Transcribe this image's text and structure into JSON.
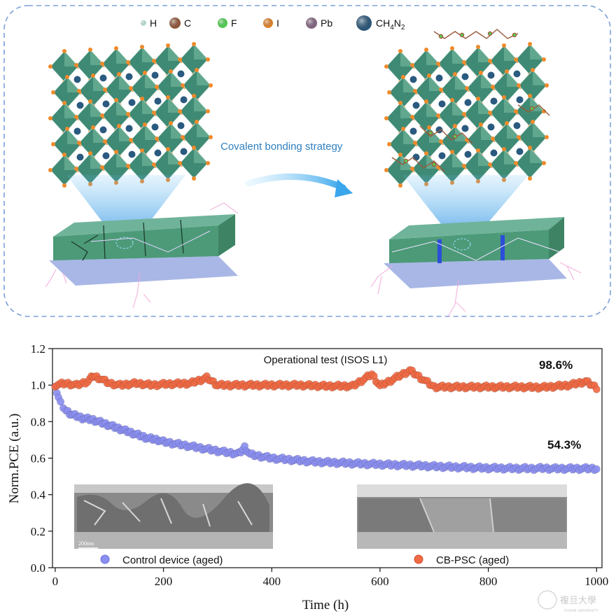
{
  "schematic": {
    "legend": [
      {
        "label": "H",
        "color": "#c8f0e8",
        "size": 4
      },
      {
        "label": "C",
        "color": "#9a5a3a",
        "size": 8
      },
      {
        "label": "F",
        "color": "#55dd55",
        "size": 7
      },
      {
        "label": "I",
        "color": "#f08a2a",
        "size": 7
      },
      {
        "label": "Pb",
        "color": "#8a6a88",
        "size": 8
      },
      {
        "label": "CH4N2",
        "color": "#2a5a80",
        "size": 11
      }
    ],
    "formula_main": "CH",
    "formula_sub1": "4",
    "formula_mid": "N",
    "formula_sub2": "2",
    "strategy_label": "Covalent bonding strategy",
    "colors": {
      "octahedron": "#3f8a74",
      "octahedron_light": "#6fb39a",
      "film": "#4c9a78",
      "substrate": "#a9b7e6",
      "beam": "#5bb8f0"
    }
  },
  "chart_data": {
    "type": "scatter",
    "title": "Operational test (ISOS L1)",
    "xlabel": "Time (h)",
    "ylabel": "Norm.PCE (a.u.)",
    "xlim": [
      -5,
      1010
    ],
    "ylim": [
      0.0,
      1.2
    ],
    "xticks": [
      0,
      200,
      400,
      600,
      800,
      1000
    ],
    "yticks": [
      0.0,
      0.2,
      0.4,
      0.6,
      0.8,
      1.0,
      1.2
    ],
    "legend_placement": "bottom",
    "series": [
      {
        "name": "Control device (aged)",
        "color": "#8b8ff0",
        "final_label": "54.3%",
        "points": [
          [
            0,
            1.0
          ],
          [
            3,
            0.96
          ],
          [
            6,
            0.93
          ],
          [
            10,
            0.9
          ],
          [
            15,
            0.88
          ],
          [
            20,
            0.86
          ],
          [
            30,
            0.84
          ],
          [
            40,
            0.83
          ],
          [
            50,
            0.82
          ],
          [
            60,
            0.815
          ],
          [
            70,
            0.81
          ],
          [
            80,
            0.8
          ],
          [
            90,
            0.79
          ],
          [
            100,
            0.78
          ],
          [
            110,
            0.77
          ],
          [
            120,
            0.76
          ],
          [
            130,
            0.75
          ],
          [
            140,
            0.74
          ],
          [
            150,
            0.73
          ],
          [
            160,
            0.72
          ],
          [
            170,
            0.71
          ],
          [
            180,
            0.705
          ],
          [
            190,
            0.7
          ],
          [
            200,
            0.69
          ],
          [
            220,
            0.68
          ],
          [
            240,
            0.67
          ],
          [
            260,
            0.66
          ],
          [
            280,
            0.65
          ],
          [
            300,
            0.64
          ],
          [
            320,
            0.63
          ],
          [
            340,
            0.625
          ],
          [
            350,
            0.66
          ],
          [
            360,
            0.62
          ],
          [
            380,
            0.61
          ],
          [
            400,
            0.6
          ],
          [
            420,
            0.595
          ],
          [
            440,
            0.59
          ],
          [
            460,
            0.585
          ],
          [
            480,
            0.58
          ],
          [
            500,
            0.578
          ],
          [
            520,
            0.575
          ],
          [
            540,
            0.573
          ],
          [
            560,
            0.57
          ],
          [
            580,
            0.568
          ],
          [
            600,
            0.566
          ],
          [
            620,
            0.564
          ],
          [
            640,
            0.562
          ],
          [
            660,
            0.56
          ],
          [
            680,
            0.558
          ],
          [
            700,
            0.555
          ],
          [
            720,
            0.553
          ],
          [
            740,
            0.551
          ],
          [
            760,
            0.549
          ],
          [
            780,
            0.547
          ],
          [
            800,
            0.546
          ],
          [
            820,
            0.545
          ],
          [
            840,
            0.544
          ],
          [
            860,
            0.544
          ],
          [
            880,
            0.543
          ],
          [
            900,
            0.545
          ],
          [
            920,
            0.543
          ],
          [
            940,
            0.543
          ],
          [
            960,
            0.543
          ],
          [
            980,
            0.543
          ],
          [
            1000,
            0.543
          ]
        ]
      },
      {
        "name": "CB-PSC (aged)",
        "color": "#f06a44",
        "final_label": "98.6%",
        "points": [
          [
            0,
            1.0
          ],
          [
            20,
            1.01
          ],
          [
            40,
            1.0
          ],
          [
            60,
            1.02
          ],
          [
            70,
            1.05
          ],
          [
            80,
            1.04
          ],
          [
            100,
            1.01
          ],
          [
            120,
            1.0
          ],
          [
            150,
            1.01
          ],
          [
            180,
            1.0
          ],
          [
            200,
            1.005
          ],
          [
            250,
            1.01
          ],
          [
            280,
            1.04
          ],
          [
            300,
            1.0
          ],
          [
            350,
            1.0
          ],
          [
            400,
            1.0
          ],
          [
            450,
            1.0
          ],
          [
            500,
            0.995
          ],
          [
            550,
            0.995
          ],
          [
            585,
            1.06
          ],
          [
            600,
            0.995
          ],
          [
            655,
            1.08
          ],
          [
            700,
            0.99
          ],
          [
            750,
            0.99
          ],
          [
            800,
            0.99
          ],
          [
            850,
            0.99
          ],
          [
            900,
            0.988
          ],
          [
            950,
            1.0
          ],
          [
            980,
            1.02
          ],
          [
            1000,
            0.986
          ]
        ]
      }
    ]
  },
  "insets": [
    {
      "scale_label": "200nm"
    },
    {
      "scale_label": ""
    }
  ],
  "watermark": {
    "text": "複旦大學",
    "sub": "FUDAN UNIVERSITY"
  }
}
